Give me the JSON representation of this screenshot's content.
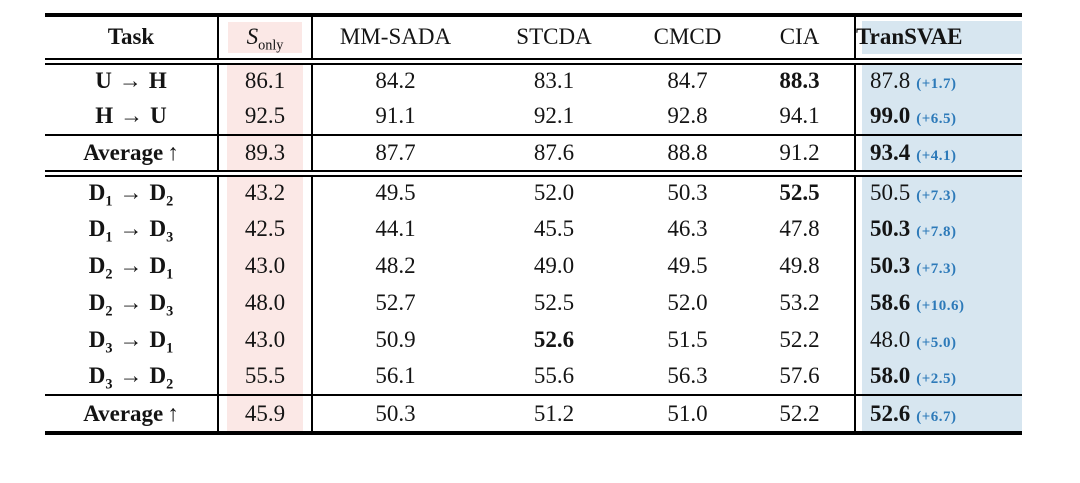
{
  "table": {
    "header": {
      "task": "Task",
      "sonly": {
        "main": "S",
        "sub": "only"
      },
      "methods": [
        "MM-SADA",
        "STCDA",
        "CMCD",
        "CIA"
      ],
      "transvae": "TranSVAE"
    },
    "symbols": {
      "right_arrow": "→",
      "up_arrow": "↑"
    },
    "sections": [
      {
        "rows": [
          {
            "task": {
              "a": "U",
              "a_sub": "",
              "b": "H",
              "b_sub": ""
            },
            "sonly": "86.1",
            "methods": [
              {
                "v": "84.2"
              },
              {
                "v": "83.1"
              },
              {
                "v": "84.7"
              },
              {
                "v": "88.3",
                "bold": true
              }
            ],
            "transvae": {
              "v": "87.8",
              "bold": false,
              "delta": "(+1.7)"
            }
          },
          {
            "task": {
              "a": "H",
              "a_sub": "",
              "b": "U",
              "b_sub": ""
            },
            "sonly": "92.5",
            "methods": [
              {
                "v": "91.1"
              },
              {
                "v": "92.1"
              },
              {
                "v": "92.8"
              },
              {
                "v": "94.1"
              }
            ],
            "transvae": {
              "v": "99.0",
              "bold": true,
              "delta": "(+6.5)"
            }
          }
        ],
        "average": {
          "label": "Average",
          "sonly": "89.3",
          "methods": [
            {
              "v": "87.7"
            },
            {
              "v": "87.6"
            },
            {
              "v": "88.8"
            },
            {
              "v": "91.2"
            }
          ],
          "transvae": {
            "v": "93.4",
            "bold": true,
            "delta": "(+4.1)"
          }
        }
      },
      {
        "rows": [
          {
            "task": {
              "a": "D",
              "a_sub": "1",
              "b": "D",
              "b_sub": "2"
            },
            "sonly": "43.2",
            "methods": [
              {
                "v": "49.5"
              },
              {
                "v": "52.0"
              },
              {
                "v": "50.3"
              },
              {
                "v": "52.5",
                "bold": true
              }
            ],
            "transvae": {
              "v": "50.5",
              "bold": false,
              "delta": "(+7.3)"
            }
          },
          {
            "task": {
              "a": "D",
              "a_sub": "1",
              "b": "D",
              "b_sub": "3"
            },
            "sonly": "42.5",
            "methods": [
              {
                "v": "44.1"
              },
              {
                "v": "45.5"
              },
              {
                "v": "46.3"
              },
              {
                "v": "47.8"
              }
            ],
            "transvae": {
              "v": "50.3",
              "bold": true,
              "delta": "(+7.8)"
            }
          },
          {
            "task": {
              "a": "D",
              "a_sub": "2",
              "b": "D",
              "b_sub": "1"
            },
            "sonly": "43.0",
            "methods": [
              {
                "v": "48.2"
              },
              {
                "v": "49.0"
              },
              {
                "v": "49.5"
              },
              {
                "v": "49.8"
              }
            ],
            "transvae": {
              "v": "50.3",
              "bold": true,
              "delta": "(+7.3)"
            }
          },
          {
            "task": {
              "a": "D",
              "a_sub": "2",
              "b": "D",
              "b_sub": "3"
            },
            "sonly": "48.0",
            "methods": [
              {
                "v": "52.7"
              },
              {
                "v": "52.5"
              },
              {
                "v": "52.0"
              },
              {
                "v": "53.2"
              }
            ],
            "transvae": {
              "v": "58.6",
              "bold": true,
              "delta": "(+10.6)"
            }
          },
          {
            "task": {
              "a": "D",
              "a_sub": "3",
              "b": "D",
              "b_sub": "1"
            },
            "sonly": "43.0",
            "methods": [
              {
                "v": "50.9"
              },
              {
                "v": "52.6",
                "bold": true
              },
              {
                "v": "51.5"
              },
              {
                "v": "52.2"
              }
            ],
            "transvae": {
              "v": "48.0",
              "bold": false,
              "delta": "(+5.0)"
            }
          },
          {
            "task": {
              "a": "D",
              "a_sub": "3",
              "b": "D",
              "b_sub": "2"
            },
            "sonly": "55.5",
            "methods": [
              {
                "v": "56.1"
              },
              {
                "v": "55.6"
              },
              {
                "v": "56.3"
              },
              {
                "v": "57.6"
              }
            ],
            "transvae": {
              "v": "58.0",
              "bold": true,
              "delta": "(+2.5)"
            }
          }
        ],
        "average": {
          "label": "Average",
          "sonly": "45.9",
          "methods": [
            {
              "v": "50.3"
            },
            {
              "v": "51.2"
            },
            {
              "v": "51.0"
            },
            {
              "v": "52.2"
            }
          ],
          "transvae": {
            "v": "52.6",
            "bold": true,
            "delta": "(+6.7)"
          }
        }
      }
    ]
  },
  "colors": {
    "pink_bg": "#fbe8e6",
    "blue_bg": "#d7e6f0",
    "delta_blue": "#2d7ab9"
  }
}
